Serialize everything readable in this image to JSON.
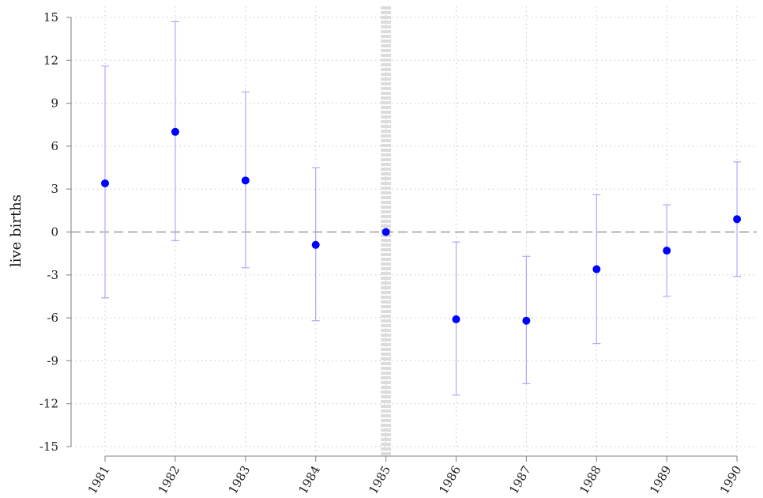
{
  "chart_data": {
    "type": "scatter",
    "ylabel": "live births",
    "xlabel": "",
    "categories": [
      "1981",
      "1982",
      "1983",
      "1984",
      "1985",
      "1986",
      "1987",
      "1988",
      "1989",
      "1990"
    ],
    "yticks": [
      "15",
      "12",
      "9",
      "6",
      "3",
      "0",
      "-3",
      "-6",
      "-9",
      "-12",
      "-15"
    ],
    "ylim": [
      -15,
      15
    ],
    "series": [
      {
        "values": [
          3.4,
          7.0,
          3.6,
          -0.9,
          0.0,
          -6.1,
          -6.2,
          -2.6,
          -1.3,
          0.9
        ],
        "ci_lower": [
          -4.6,
          -0.6,
          -2.5,
          -6.2,
          0.0,
          -11.4,
          -10.6,
          -7.8,
          -4.5,
          -3.1
        ],
        "ci_upper": [
          11.6,
          14.7,
          9.8,
          4.5,
          0.0,
          -0.7,
          -1.7,
          2.6,
          1.9,
          4.9
        ]
      }
    ],
    "reference_line_y": 0,
    "reference_line_x": "1985",
    "grid": true,
    "colors": {
      "point": "#0000ff",
      "ci": "#aaaaf5",
      "grid": "#c8c8c8",
      "axis": "#9a9a9a",
      "reference_line": "#8a8a8a",
      "band": "#dcdcdc"
    }
  }
}
